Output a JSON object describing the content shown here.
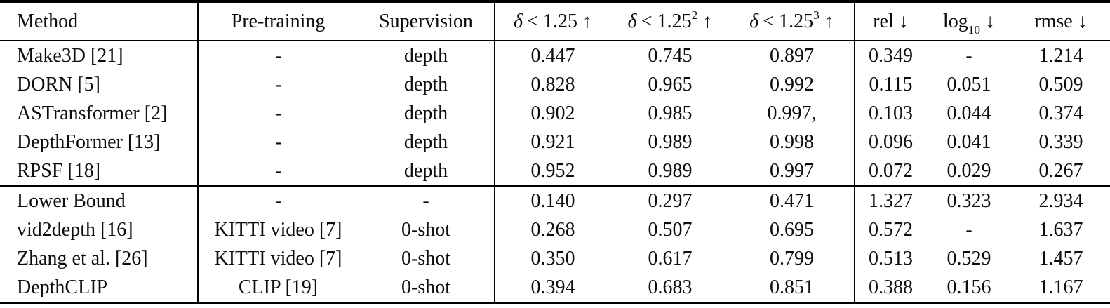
{
  "page": {
    "background": "#ffffff",
    "text_color": "#0d0d0d",
    "rule_color": "#000000"
  },
  "table": {
    "columns": [
      {
        "id": "method",
        "text": "Method",
        "align": "left",
        "group_end": true
      },
      {
        "id": "pretraining",
        "text": "Pre-training",
        "align": "center",
        "group_end": false
      },
      {
        "id": "supervision",
        "text": "Supervision",
        "align": "center",
        "group_end": true
      },
      {
        "id": "delta1",
        "italic_prefix": "δ",
        "text": "< 1.25",
        "sup": "",
        "arrow": "↑",
        "align": "center",
        "group_end": false
      },
      {
        "id": "delta2",
        "italic_prefix": "δ",
        "text": "< 1.25",
        "sup": "2",
        "arrow": "↑",
        "align": "center",
        "group_end": false
      },
      {
        "id": "delta3",
        "italic_prefix": "δ",
        "text": "< 1.25",
        "sup": "3",
        "arrow": "↑",
        "align": "center",
        "group_end": true
      },
      {
        "id": "rel",
        "text": "rel",
        "arrow": "↓",
        "align": "center",
        "group_end": false
      },
      {
        "id": "log10",
        "text": "log",
        "sub": "10",
        "arrow": "↓",
        "align": "center",
        "group_end": false
      },
      {
        "id": "rmse",
        "text": "rmse",
        "arrow": "↓",
        "align": "center",
        "group_end": false
      }
    ],
    "sections": [
      {
        "name": "supervised-methods",
        "rows": [
          {
            "cells": [
              {
                "text": "Make3D [21]"
              },
              {
                "text": "-"
              },
              {
                "text": "depth"
              },
              {
                "text": "0.447"
              },
              {
                "text": "0.745"
              },
              {
                "text": "0.897"
              },
              {
                "text": "0.349"
              },
              {
                "text": "-"
              },
              {
                "text": "1.214"
              }
            ]
          },
          {
            "cells": [
              {
                "text": "DORN [5]"
              },
              {
                "text": "-"
              },
              {
                "text": "depth"
              },
              {
                "text": "0.828"
              },
              {
                "text": "0.965"
              },
              {
                "text": "0.992"
              },
              {
                "text": "0.115"
              },
              {
                "text": "0.051"
              },
              {
                "text": "0.509"
              }
            ]
          },
          {
            "cells": [
              {
                "text": "ASTransformer [2]"
              },
              {
                "text": "-"
              },
              {
                "text": "depth"
              },
              {
                "text": "0.902"
              },
              {
                "text": "0.985"
              },
              {
                "text": "0.997,"
              },
              {
                "text": "0.103"
              },
              {
                "text": "0.044"
              },
              {
                "text": "0.374"
              }
            ]
          },
          {
            "cells": [
              {
                "text": "DepthFormer [13]"
              },
              {
                "text": "-"
              },
              {
                "text": "depth"
              },
              {
                "text": "0.921"
              },
              {
                "text": "0.989"
              },
              {
                "text": "0.998",
                "bold": true
              },
              {
                "text": "0.096"
              },
              {
                "text": "0.041"
              },
              {
                "text": "0.339"
              }
            ]
          },
          {
            "cells": [
              {
                "text": "RPSF [18]"
              },
              {
                "text": "-"
              },
              {
                "text": "depth"
              },
              {
                "text": "0.952",
                "bold": true
              },
              {
                "text": "0.989",
                "bold": true
              },
              {
                "text": "0.997"
              },
              {
                "text": "0.072",
                "bold": true
              },
              {
                "text": "0.029",
                "bold": true
              },
              {
                "text": "0.267",
                "bold": true
              }
            ]
          }
        ]
      },
      {
        "name": "zero-shot-methods",
        "rows": [
          {
            "cells": [
              {
                "text": "Lower Bound"
              },
              {
                "text": "-"
              },
              {
                "text": "-"
              },
              {
                "text": "0.140"
              },
              {
                "text": "0.297"
              },
              {
                "text": "0.471"
              },
              {
                "text": "1.327"
              },
              {
                "text": "0.323"
              },
              {
                "text": "2.934"
              }
            ]
          },
          {
            "cells": [
              {
                "text": "vid2depth [16]"
              },
              {
                "text": "KITTI video [7]"
              },
              {
                "text": "0-shot"
              },
              {
                "text": "0.268"
              },
              {
                "text": "0.507"
              },
              {
                "text": "0.695"
              },
              {
                "text": "0.572"
              },
              {
                "text": "-"
              },
              {
                "text": "1.637"
              }
            ]
          },
          {
            "cells": [
              {
                "text": "Zhang et al. [26]"
              },
              {
                "text": "KITTI video [7]"
              },
              {
                "text": "0-shot"
              },
              {
                "text": "0.350"
              },
              {
                "text": "0.617"
              },
              {
                "text": "0.799"
              },
              {
                "text": "0.513"
              },
              {
                "text": "0.529"
              },
              {
                "text": "1.457"
              }
            ]
          },
          {
            "cells": [
              {
                "text": "DepthCLIP",
                "bold": true
              },
              {
                "text": "CLIP [19]"
              },
              {
                "text": "0-shot"
              },
              {
                "text": "0.394",
                "bold": true
              },
              {
                "text": "0.683",
                "bold": true
              },
              {
                "text": "0.851",
                "bold": true
              },
              {
                "text": "0.388",
                "bold": true
              },
              {
                "text": "0.156",
                "bold": true
              },
              {
                "text": "1.167",
                "bold": true
              }
            ]
          }
        ]
      }
    ]
  }
}
